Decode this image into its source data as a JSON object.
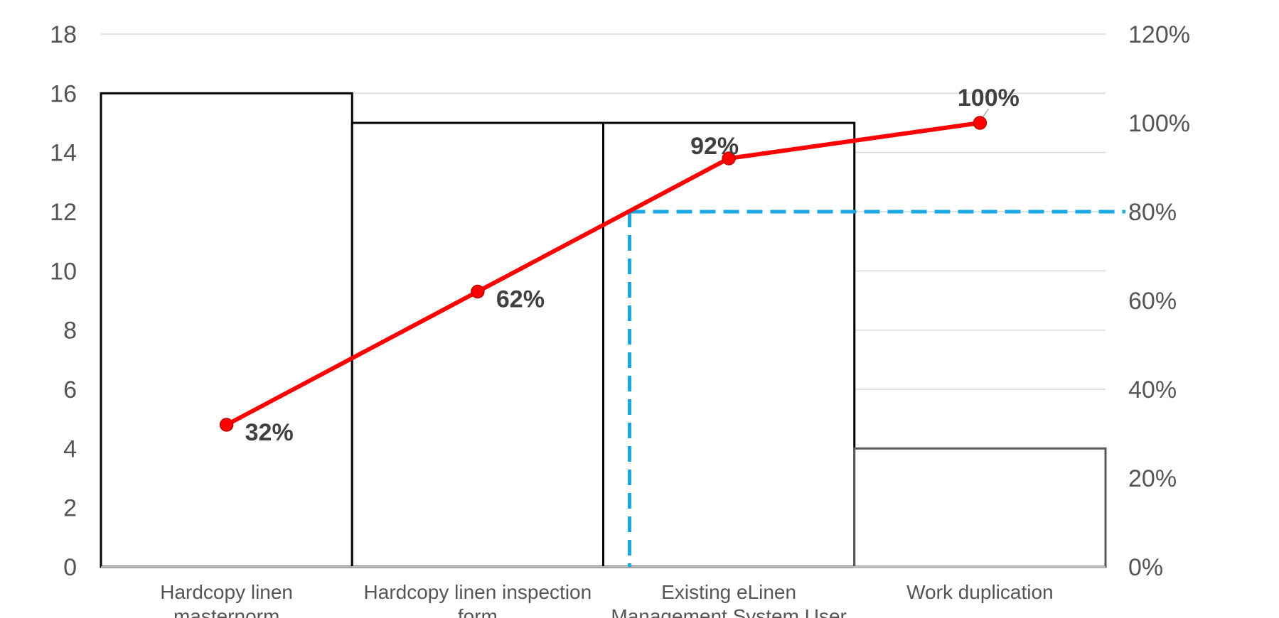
{
  "chart_data": {
    "type": "pareto",
    "categories": [
      [
        "Hardcopy linen",
        "masternorm"
      ],
      [
        "Hardcopy linen inspection",
        "form"
      ],
      [
        "Existing eLinen",
        "Management System User"
      ],
      [
        "Work duplication"
      ]
    ],
    "bars": {
      "values": [
        16,
        15,
        15,
        4
      ],
      "fill": "#ffffff",
      "stroke": "#000000"
    },
    "cumulative": {
      "values": [
        32,
        62,
        92,
        100
      ],
      "labels": [
        "32%",
        "62%",
        "92%",
        "100%"
      ],
      "color": "#ff0000"
    },
    "threshold": {
      "value": 80,
      "color": "#1aa7e6"
    },
    "y_left": {
      "min": 0,
      "max": 18,
      "ticks": [
        "0",
        "2",
        "4",
        "6",
        "8",
        "10",
        "12",
        "14",
        "16",
        "18"
      ]
    },
    "y_right": {
      "min": 0,
      "max": 120,
      "ticks": [
        "0%",
        "20%",
        "40%",
        "60%",
        "80%",
        "100%",
        "120%"
      ]
    },
    "grid": true,
    "title": "",
    "xlabel": "",
    "ylabel": ""
  }
}
